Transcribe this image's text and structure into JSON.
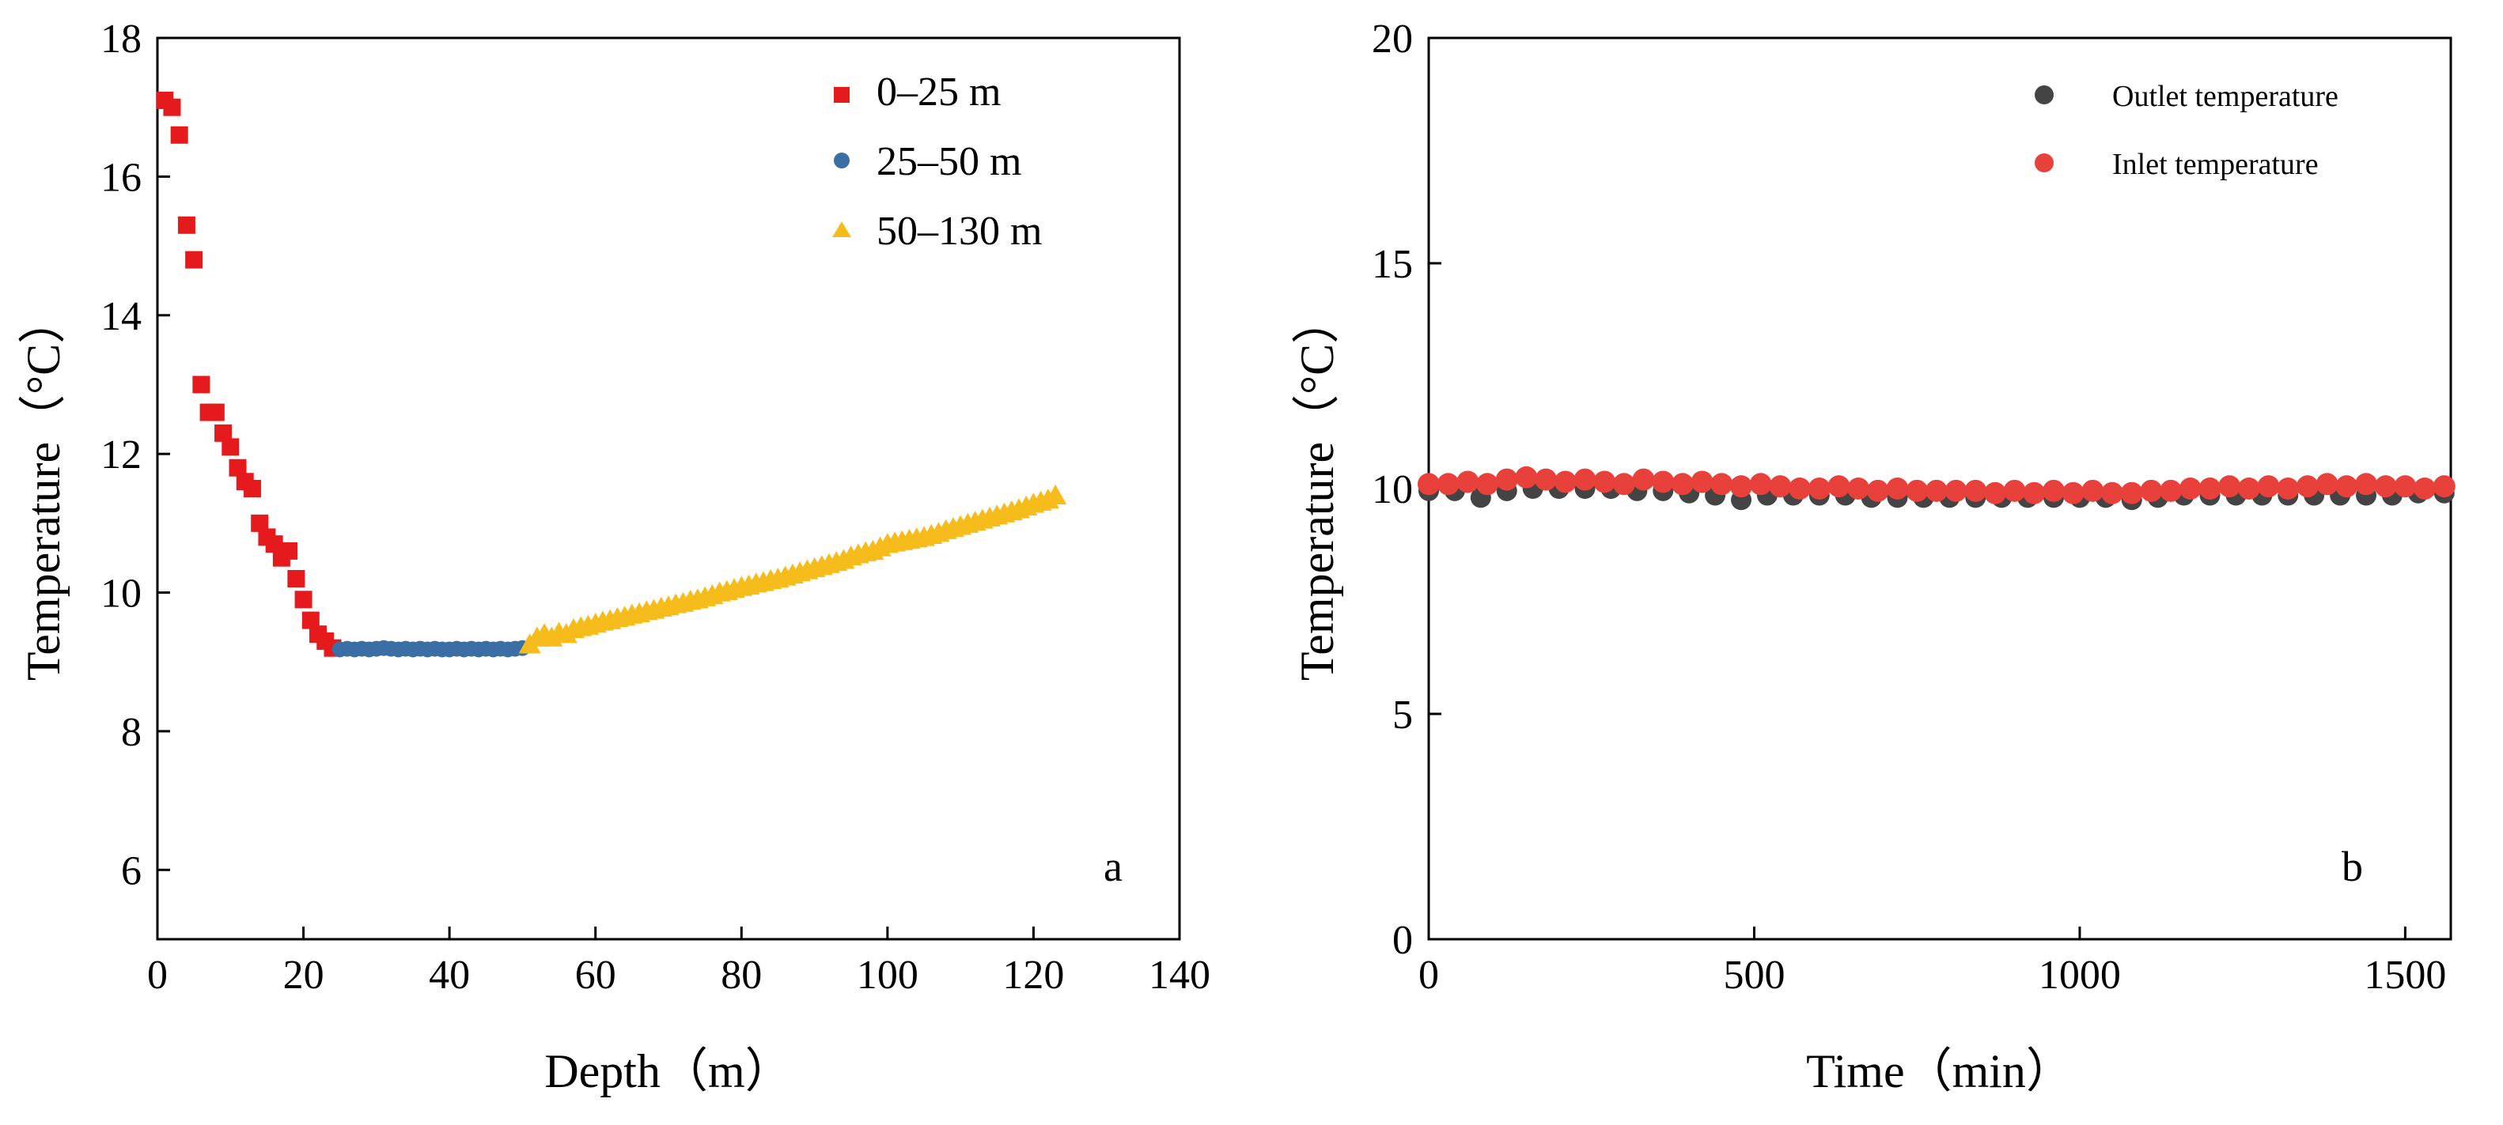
{
  "chart_data": [
    {
      "id": "a",
      "type": "scatter",
      "panel_label": "a",
      "title": "",
      "xlabel": "Depth（m）",
      "ylabel": "Temperature（°C）",
      "xlim": [
        0,
        140
      ],
      "ylim": [
        5,
        18
      ],
      "xticks": [
        0,
        20,
        40,
        60,
        80,
        100,
        120,
        140
      ],
      "yticks": [
        6,
        8,
        10,
        12,
        14,
        16,
        18
      ],
      "grid": false,
      "legend_position": "top-right",
      "series": [
        {
          "name": "0–25 m",
          "marker": "square",
          "color": "#e41a1c",
          "points": [
            [
              1,
              17.1
            ],
            [
              2,
              17.0
            ],
            [
              3,
              16.6
            ],
            [
              4,
              15.3
            ],
            [
              5,
              14.8
            ],
            [
              6,
              13.0
            ],
            [
              7,
              12.6
            ],
            [
              8,
              12.6
            ],
            [
              9,
              12.3
            ],
            [
              10,
              12.1
            ],
            [
              11,
              11.8
            ],
            [
              12,
              11.6
            ],
            [
              13,
              11.5
            ],
            [
              14,
              11.0
            ],
            [
              15,
              10.8
            ],
            [
              16,
              10.7
            ],
            [
              17,
              10.5
            ],
            [
              18,
              10.6
            ],
            [
              19,
              10.2
            ],
            [
              20,
              9.9
            ],
            [
              21,
              9.6
            ],
            [
              22,
              9.4
            ],
            [
              23,
              9.3
            ],
            [
              24,
              9.2
            ]
          ]
        },
        {
          "name": "25–50 m",
          "marker": "circle",
          "color": "#3b6ea5",
          "points": [
            [
              25,
              9.18
            ],
            [
              26,
              9.19
            ],
            [
              27,
              9.18
            ],
            [
              28,
              9.19
            ],
            [
              29,
              9.18
            ],
            [
              30,
              9.19
            ],
            [
              31,
              9.2
            ],
            [
              32,
              9.19
            ],
            [
              33,
              9.18
            ],
            [
              34,
              9.19
            ],
            [
              35,
              9.18
            ],
            [
              36,
              9.19
            ],
            [
              37,
              9.18
            ],
            [
              38,
              9.19
            ],
            [
              39,
              9.18
            ],
            [
              40,
              9.18
            ],
            [
              41,
              9.19
            ],
            [
              42,
              9.18
            ],
            [
              43,
              9.19
            ],
            [
              44,
              9.18
            ],
            [
              45,
              9.19
            ],
            [
              46,
              9.18
            ],
            [
              47,
              9.19
            ],
            [
              48,
              9.18
            ],
            [
              49,
              9.19
            ],
            [
              50,
              9.2
            ]
          ]
        },
        {
          "name": "50–130 m",
          "marker": "triangle",
          "color": "#f5bc1b",
          "points": [
            [
              51,
              9.25
            ],
            [
              52,
              9.35
            ],
            [
              53,
              9.4
            ],
            [
              54,
              9.35
            ],
            [
              55,
              9.42
            ],
            [
              56,
              9.4
            ],
            [
              57,
              9.47
            ],
            [
              58,
              9.5
            ],
            [
              59,
              9.52
            ],
            [
              60,
              9.55
            ],
            [
              61,
              9.58
            ],
            [
              62,
              9.6
            ],
            [
              63,
              9.63
            ],
            [
              64,
              9.65
            ],
            [
              65,
              9.68
            ],
            [
              66,
              9.7
            ],
            [
              67,
              9.73
            ],
            [
              68,
              9.75
            ],
            [
              69,
              9.78
            ],
            [
              70,
              9.8
            ],
            [
              71,
              9.83
            ],
            [
              72,
              9.85
            ],
            [
              73,
              9.88
            ],
            [
              74,
              9.9
            ],
            [
              75,
              9.93
            ],
            [
              76,
              9.96
            ],
            [
              77,
              10.0
            ],
            [
              78,
              10.02
            ],
            [
              79,
              10.05
            ],
            [
              80,
              10.08
            ],
            [
              81,
              10.1
            ],
            [
              82,
              10.13
            ],
            [
              83,
              10.15
            ],
            [
              84,
              10.18
            ],
            [
              85,
              10.2
            ],
            [
              86,
              10.23
            ],
            [
              87,
              10.26
            ],
            [
              88,
              10.29
            ],
            [
              89,
              10.32
            ],
            [
              90,
              10.35
            ],
            [
              91,
              10.38
            ],
            [
              92,
              10.41
            ],
            [
              93,
              10.44
            ],
            [
              94,
              10.47
            ],
            [
              95,
              10.52
            ],
            [
              96,
              10.55
            ],
            [
              97,
              10.58
            ],
            [
              98,
              10.6
            ],
            [
              99,
              10.65
            ],
            [
              100,
              10.7
            ],
            [
              101,
              10.72
            ],
            [
              102,
              10.74
            ],
            [
              103,
              10.76
            ],
            [
              104,
              10.78
            ],
            [
              105,
              10.8
            ],
            [
              106,
              10.83
            ],
            [
              107,
              10.86
            ],
            [
              108,
              10.9
            ],
            [
              109,
              10.93
            ],
            [
              110,
              10.96
            ],
            [
              111,
              10.99
            ],
            [
              112,
              11.02
            ],
            [
              113,
              11.05
            ],
            [
              114,
              11.08
            ],
            [
              115,
              11.11
            ],
            [
              116,
              11.14
            ],
            [
              117,
              11.17
            ],
            [
              118,
              11.2
            ],
            [
              119,
              11.24
            ],
            [
              120,
              11.28
            ],
            [
              121,
              11.31
            ],
            [
              122,
              11.34
            ],
            [
              123,
              11.4
            ]
          ]
        }
      ]
    },
    {
      "id": "b",
      "type": "scatter",
      "panel_label": "b",
      "title": "",
      "xlabel": "Time（min）",
      "ylabel": "Temperature（°C）",
      "xlim": [
        0,
        1570
      ],
      "ylim": [
        0,
        20
      ],
      "xticks": [
        0,
        500,
        1000,
        1500
      ],
      "yticks": [
        0,
        5,
        10,
        15,
        20
      ],
      "grid": false,
      "legend_position": "top-right",
      "series": [
        {
          "name": "Outlet temperature",
          "marker": "circle",
          "color": "#444444",
          "points": [
            [
              0,
              9.95
            ],
            [
              40,
              9.95
            ],
            [
              80,
              9.8
            ],
            [
              120,
              9.95
            ],
            [
              160,
              10.0
            ],
            [
              200,
              10.0
            ],
            [
              240,
              10.0
            ],
            [
              280,
              10.0
            ],
            [
              320,
              9.95
            ],
            [
              360,
              9.95
            ],
            [
              400,
              9.9
            ],
            [
              440,
              9.85
            ],
            [
              480,
              9.75
            ],
            [
              520,
              9.85
            ],
            [
              560,
              9.85
            ],
            [
              600,
              9.85
            ],
            [
              640,
              9.85
            ],
            [
              680,
              9.8
            ],
            [
              720,
              9.8
            ],
            [
              760,
              9.8
            ],
            [
              800,
              9.8
            ],
            [
              840,
              9.8
            ],
            [
              880,
              9.8
            ],
            [
              920,
              9.8
            ],
            [
              960,
              9.8
            ],
            [
              1000,
              9.8
            ],
            [
              1040,
              9.8
            ],
            [
              1080,
              9.75
            ],
            [
              1120,
              9.8
            ],
            [
              1160,
              9.85
            ],
            [
              1200,
              9.85
            ],
            [
              1240,
              9.85
            ],
            [
              1280,
              9.85
            ],
            [
              1320,
              9.85
            ],
            [
              1360,
              9.85
            ],
            [
              1400,
              9.85
            ],
            [
              1440,
              9.85
            ],
            [
              1480,
              9.85
            ],
            [
              1520,
              9.9
            ],
            [
              1560,
              9.9
            ]
          ]
        },
        {
          "name": "Inlet temperature",
          "marker": "circle",
          "color": "#e8403a",
          "points": [
            [
              0,
              10.1
            ],
            [
              30,
              10.1
            ],
            [
              60,
              10.15
            ],
            [
              90,
              10.1
            ],
            [
              120,
              10.2
            ],
            [
              150,
              10.25
            ],
            [
              180,
              10.2
            ],
            [
              210,
              10.15
            ],
            [
              240,
              10.2
            ],
            [
              270,
              10.15
            ],
            [
              300,
              10.1
            ],
            [
              330,
              10.2
            ],
            [
              360,
              10.15
            ],
            [
              390,
              10.1
            ],
            [
              420,
              10.15
            ],
            [
              450,
              10.1
            ],
            [
              480,
              10.05
            ],
            [
              510,
              10.1
            ],
            [
              540,
              10.05
            ],
            [
              570,
              10.0
            ],
            [
              600,
              10.0
            ],
            [
              630,
              10.05
            ],
            [
              660,
              10.0
            ],
            [
              690,
              9.95
            ],
            [
              720,
              10.0
            ],
            [
              750,
              9.95
            ],
            [
              780,
              9.95
            ],
            [
              810,
              9.95
            ],
            [
              840,
              9.95
            ],
            [
              870,
              9.9
            ],
            [
              900,
              9.95
            ],
            [
              930,
              9.9
            ],
            [
              960,
              9.95
            ],
            [
              990,
              9.9
            ],
            [
              1020,
              9.95
            ],
            [
              1050,
              9.9
            ],
            [
              1080,
              9.9
            ],
            [
              1110,
              9.95
            ],
            [
              1140,
              9.95
            ],
            [
              1170,
              10.0
            ],
            [
              1200,
              10.0
            ],
            [
              1230,
              10.05
            ],
            [
              1260,
              10.0
            ],
            [
              1290,
              10.05
            ],
            [
              1320,
              10.0
            ],
            [
              1350,
              10.05
            ],
            [
              1380,
              10.1
            ],
            [
              1410,
              10.05
            ],
            [
              1440,
              10.1
            ],
            [
              1470,
              10.05
            ],
            [
              1500,
              10.05
            ],
            [
              1530,
              10.0
            ],
            [
              1560,
              10.05
            ]
          ]
        }
      ]
    }
  ]
}
